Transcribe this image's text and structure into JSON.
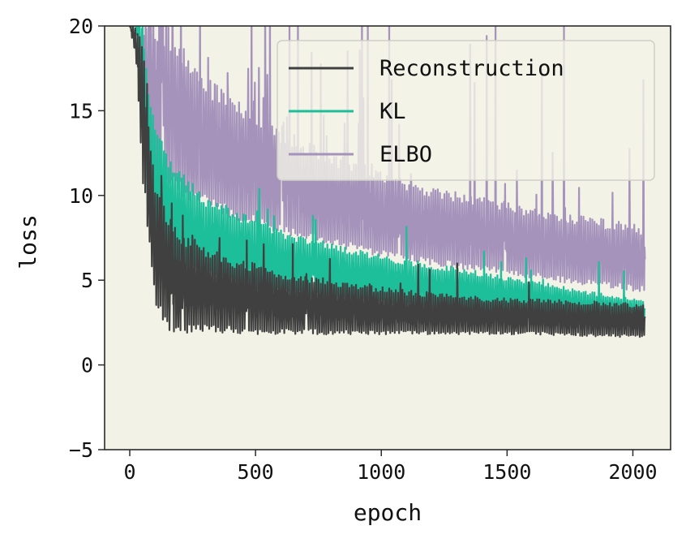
{
  "chart_data": {
    "type": "line",
    "title": "",
    "xlabel": "epoch",
    "ylabel": "loss",
    "xlim": [
      -100,
      2150
    ],
    "ylim": [
      -5,
      20
    ],
    "xticks": [
      0,
      500,
      1000,
      1500,
      2000
    ],
    "yticks": [
      -5,
      0,
      5,
      10,
      15,
      20
    ],
    "xtick_labels": [
      "0",
      "500",
      "1000",
      "1500",
      "2000"
    ],
    "ytick_labels": [
      "−5",
      "0",
      "5",
      "10",
      "15",
      "20"
    ],
    "grid": false,
    "legend_position": "top-right",
    "background_color": "#f3f2e7",
    "x_range": [
      0,
      2048
    ],
    "series": [
      {
        "name": "Reconstruction",
        "color": "#404040",
        "x": [
          0,
          25,
          50,
          75,
          100,
          150,
          200,
          300,
          400,
          500,
          600,
          800,
          1000,
          1200,
          1400,
          1600,
          1800,
          2048
        ],
        "low": [
          20,
          18,
          11,
          7.5,
          3.5,
          2.0,
          1.8,
          1.9,
          1.9,
          1.8,
          1.8,
          1.8,
          1.8,
          1.8,
          1.8,
          1.8,
          1.7,
          1.6
        ],
        "high": [
          20,
          20,
          20,
          14,
          11,
          9.0,
          8.0,
          7.0,
          6.3,
          6.0,
          5.5,
          5.1,
          4.6,
          4.3,
          4.0,
          3.9,
          3.8,
          3.6
        ]
      },
      {
        "name": "KL",
        "color": "#1dbe9a",
        "x": [
          0,
          25,
          50,
          75,
          100,
          150,
          200,
          300,
          400,
          500,
          600,
          800,
          1000,
          1200,
          1400,
          1600,
          1800,
          2048
        ],
        "low": [
          20,
          20,
          12,
          9.0,
          6.5,
          6.0,
          5.6,
          5.2,
          4.8,
          4.5,
          4.2,
          3.9,
          3.6,
          3.3,
          3.0,
          2.9,
          2.7,
          2.5
        ],
        "high": [
          20,
          20,
          20,
          17,
          14,
          12.5,
          11.5,
          10.0,
          9.3,
          8.6,
          8.0,
          7.2,
          6.5,
          6.0,
          5.5,
          5.0,
          4.4,
          3.8
        ]
      },
      {
        "name": "ELBO",
        "color": "#a593bb",
        "x": [
          0,
          25,
          50,
          75,
          100,
          150,
          200,
          300,
          400,
          500,
          600,
          800,
          1000,
          1200,
          1400,
          1600,
          1800,
          2048
        ],
        "low": [
          20,
          20,
          15,
          13,
          11.5,
          10.5,
          10.0,
          9.3,
          8.7,
          8.2,
          7.7,
          7.0,
          6.4,
          5.9,
          5.5,
          5.1,
          4.7,
          4.3
        ],
        "high": [
          20,
          20,
          20,
          20,
          20,
          20,
          19,
          17,
          16,
          15,
          14,
          12.5,
          11.5,
          10.5,
          10.0,
          9.3,
          8.8,
          8.2
        ]
      }
    ]
  }
}
